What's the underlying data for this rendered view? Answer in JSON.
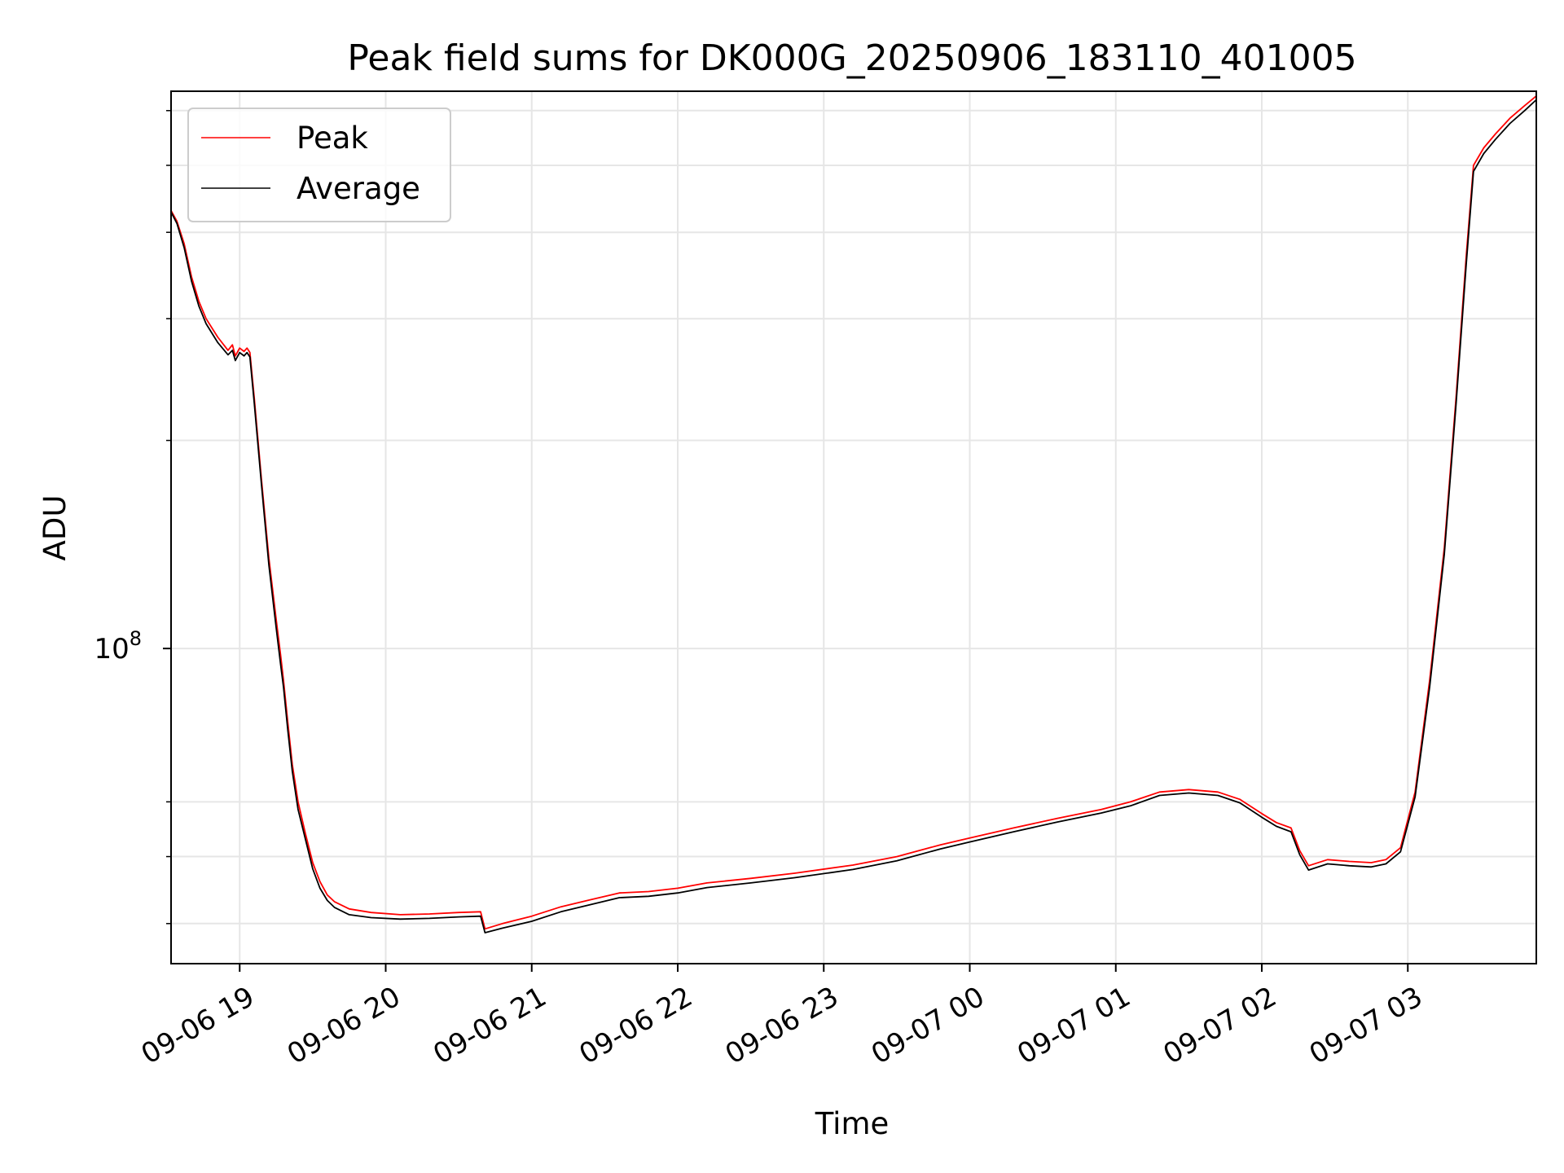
{
  "chart_data": {
    "type": "line",
    "title": "Peak field sums for DK000G_20250906_183110_401005",
    "xlabel": "Time",
    "ylabel": "ADU",
    "yscale": "log",
    "grid": true,
    "legend_position": "top-left",
    "xlim": [
      -0.47,
      8.88
    ],
    "ylim": [
      35000000,
      640000000
    ],
    "x_units": "hours since 09-06 19:00",
    "x_ticks": [
      {
        "value": 0,
        "label": "09-06 19"
      },
      {
        "value": 1,
        "label": "09-06 20"
      },
      {
        "value": 2,
        "label": "09-06 21"
      },
      {
        "value": 3,
        "label": "09-06 22"
      },
      {
        "value": 4,
        "label": "09-06 23"
      },
      {
        "value": 5,
        "label": "09-07 00"
      },
      {
        "value": 6,
        "label": "09-07 01"
      },
      {
        "value": 7,
        "label": "09-07 02"
      },
      {
        "value": 8,
        "label": "09-07 03"
      }
    ],
    "y_major_ticks": [
      {
        "value": 100000000,
        "base": "10",
        "exp": "8"
      }
    ],
    "y_minor_ticks": [
      40000000,
      50000000,
      60000000,
      200000000,
      300000000,
      400000000,
      500000000,
      600000000
    ],
    "series": [
      {
        "name": "Peak",
        "color": "#ff0000",
        "points": [
          [
            -0.47,
            430000000
          ],
          [
            -0.43,
            415000000
          ],
          [
            -0.38,
            385000000
          ],
          [
            -0.33,
            345000000
          ],
          [
            -0.28,
            318000000
          ],
          [
            -0.23,
            300000000
          ],
          [
            -0.15,
            282000000
          ],
          [
            -0.08,
            270000000
          ],
          [
            -0.05,
            275000000
          ],
          [
            -0.03,
            265000000
          ],
          [
            0.0,
            272000000
          ],
          [
            0.03,
            269000000
          ],
          [
            0.05,
            272000000
          ],
          [
            0.07,
            268000000
          ],
          [
            0.1,
            230000000
          ],
          [
            0.15,
            175000000
          ],
          [
            0.2,
            135000000
          ],
          [
            0.25,
            110000000
          ],
          [
            0.28,
            98000000
          ],
          [
            0.3,
            90000000
          ],
          [
            0.33,
            78000000
          ],
          [
            0.36,
            68000000
          ],
          [
            0.4,
            60000000
          ],
          [
            0.45,
            54000000
          ],
          [
            0.5,
            49000000
          ],
          [
            0.55,
            46000000
          ],
          [
            0.6,
            44000000
          ],
          [
            0.65,
            43000000
          ],
          [
            0.75,
            42000000
          ],
          [
            0.9,
            41500000
          ],
          [
            1.1,
            41200000
          ],
          [
            1.3,
            41300000
          ],
          [
            1.5,
            41500000
          ],
          [
            1.65,
            41600000
          ],
          [
            1.68,
            39300000
          ],
          [
            1.8,
            40000000
          ],
          [
            2.0,
            41000000
          ],
          [
            2.2,
            42300000
          ],
          [
            2.4,
            43300000
          ],
          [
            2.6,
            44300000
          ],
          [
            2.8,
            44500000
          ],
          [
            3.0,
            45000000
          ],
          [
            3.2,
            45800000
          ],
          [
            3.5,
            46500000
          ],
          [
            3.8,
            47300000
          ],
          [
            4.2,
            48600000
          ],
          [
            4.5,
            50000000
          ],
          [
            4.8,
            52000000
          ],
          [
            5.0,
            53200000
          ],
          [
            5.3,
            55000000
          ],
          [
            5.6,
            56800000
          ],
          [
            5.9,
            58500000
          ],
          [
            6.1,
            60000000
          ],
          [
            6.3,
            62000000
          ],
          [
            6.5,
            62500000
          ],
          [
            6.7,
            62000000
          ],
          [
            6.85,
            60500000
          ],
          [
            7.0,
            57700000
          ],
          [
            7.1,
            56000000
          ],
          [
            7.2,
            55000000
          ],
          [
            7.26,
            51000000
          ],
          [
            7.32,
            48500000
          ],
          [
            7.45,
            49500000
          ],
          [
            7.6,
            49200000
          ],
          [
            7.75,
            49000000
          ],
          [
            7.85,
            49500000
          ],
          [
            7.95,
            51500000
          ],
          [
            8.05,
            62000000
          ],
          [
            8.15,
            90000000
          ],
          [
            8.25,
            140000000
          ],
          [
            8.33,
            230000000
          ],
          [
            8.4,
            370000000
          ],
          [
            8.45,
            500000000
          ],
          [
            8.52,
            530000000
          ],
          [
            8.6,
            555000000
          ],
          [
            8.7,
            585000000
          ],
          [
            8.8,
            610000000
          ],
          [
            8.88,
            630000000
          ]
        ]
      },
      {
        "name": "Average",
        "color": "#000000",
        "points": [
          [
            -0.47,
            428000000
          ],
          [
            -0.43,
            412000000
          ],
          [
            -0.38,
            380000000
          ],
          [
            -0.33,
            340000000
          ],
          [
            -0.28,
            313000000
          ],
          [
            -0.23,
            295000000
          ],
          [
            -0.15,
            277000000
          ],
          [
            -0.08,
            266000000
          ],
          [
            -0.05,
            270000000
          ],
          [
            -0.03,
            261000000
          ],
          [
            0.0,
            268000000
          ],
          [
            0.03,
            265000000
          ],
          [
            0.05,
            268000000
          ],
          [
            0.07,
            264000000
          ],
          [
            0.1,
            226000000
          ],
          [
            0.15,
            172000000
          ],
          [
            0.2,
            132000000
          ],
          [
            0.25,
            107000000
          ],
          [
            0.28,
            95000000
          ],
          [
            0.3,
            88000000
          ],
          [
            0.33,
            76000000
          ],
          [
            0.36,
            66500000
          ],
          [
            0.4,
            58500000
          ],
          [
            0.45,
            53000000
          ],
          [
            0.5,
            48000000
          ],
          [
            0.55,
            45000000
          ],
          [
            0.6,
            43200000
          ],
          [
            0.65,
            42200000
          ],
          [
            0.75,
            41200000
          ],
          [
            0.9,
            40800000
          ],
          [
            1.1,
            40600000
          ],
          [
            1.3,
            40700000
          ],
          [
            1.5,
            40900000
          ],
          [
            1.65,
            41000000
          ],
          [
            1.68,
            38800000
          ],
          [
            1.8,
            39400000
          ],
          [
            2.0,
            40300000
          ],
          [
            2.2,
            41600000
          ],
          [
            2.4,
            42600000
          ],
          [
            2.6,
            43600000
          ],
          [
            2.8,
            43800000
          ],
          [
            3.0,
            44300000
          ],
          [
            3.2,
            45100000
          ],
          [
            3.5,
            45800000
          ],
          [
            3.8,
            46600000
          ],
          [
            4.2,
            47900000
          ],
          [
            4.5,
            49300000
          ],
          [
            4.8,
            51300000
          ],
          [
            5.0,
            52500000
          ],
          [
            5.3,
            54300000
          ],
          [
            5.6,
            56100000
          ],
          [
            5.9,
            57800000
          ],
          [
            6.1,
            59200000
          ],
          [
            6.3,
            61300000
          ],
          [
            6.5,
            61800000
          ],
          [
            6.7,
            61300000
          ],
          [
            6.85,
            59800000
          ],
          [
            7.0,
            57000000
          ],
          [
            7.1,
            55300000
          ],
          [
            7.2,
            54300000
          ],
          [
            7.26,
            50300000
          ],
          [
            7.32,
            47800000
          ],
          [
            7.45,
            48800000
          ],
          [
            7.6,
            48500000
          ],
          [
            7.75,
            48300000
          ],
          [
            7.85,
            48800000
          ],
          [
            7.95,
            50800000
          ],
          [
            8.05,
            61000000
          ],
          [
            8.15,
            88000000
          ],
          [
            8.25,
            137000000
          ],
          [
            8.33,
            225000000
          ],
          [
            8.4,
            360000000
          ],
          [
            8.45,
            490000000
          ],
          [
            8.52,
            520000000
          ],
          [
            8.6,
            545000000
          ],
          [
            8.7,
            575000000
          ],
          [
            8.8,
            600000000
          ],
          [
            8.88,
            622000000
          ]
        ]
      }
    ]
  }
}
